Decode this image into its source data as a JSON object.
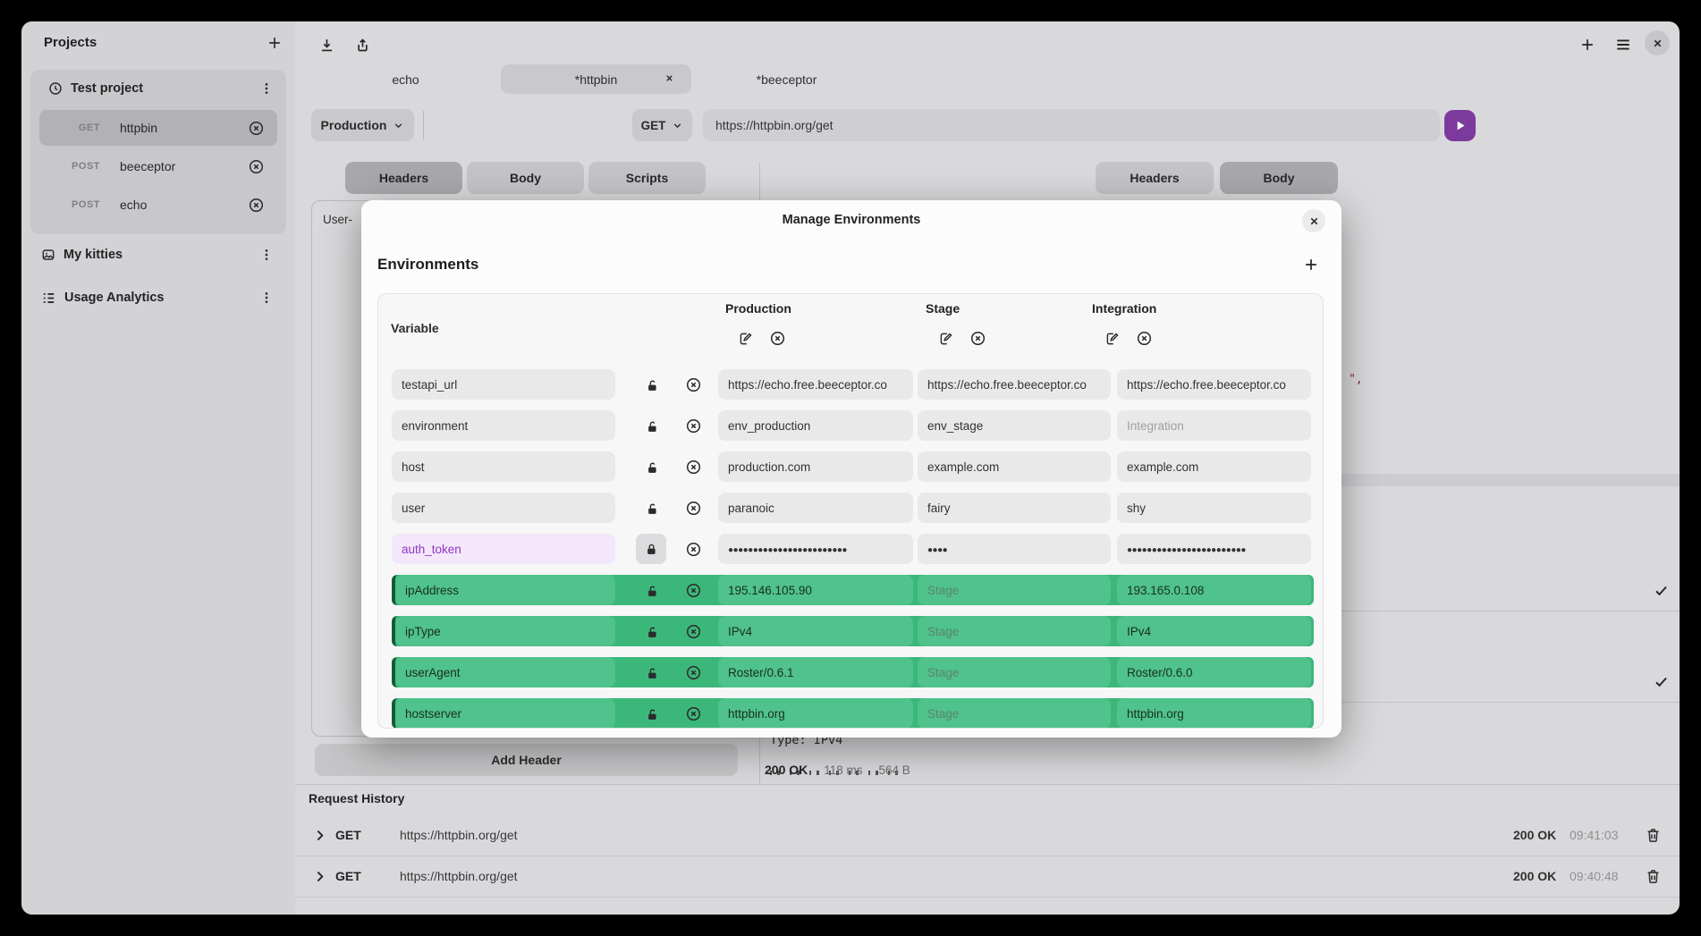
{
  "sidebar": {
    "title": "Projects",
    "groups": [
      {
        "label": "Test project",
        "icon": "clock",
        "items": [
          {
            "method": "GET",
            "name": "httpbin",
            "selected": true
          },
          {
            "method": "POST",
            "name": "beeceptor",
            "selected": false
          },
          {
            "method": "POST",
            "name": "echo",
            "selected": false
          }
        ]
      },
      {
        "label": "My kitties",
        "icon": "image",
        "items": []
      },
      {
        "label": "Usage Analytics",
        "icon": "list",
        "items": []
      }
    ]
  },
  "tabs": [
    {
      "label": "echo",
      "active": false
    },
    {
      "label": "*httpbin",
      "active": true
    },
    {
      "label": "*beeceptor",
      "active": false
    }
  ],
  "request_bar": {
    "environment": "Production",
    "method": "GET",
    "url": "https://httpbin.org/get"
  },
  "request_tabs": {
    "labels": [
      "Headers",
      "Body",
      "Scripts"
    ],
    "active": 0
  },
  "response_tabs": {
    "labels": [
      "Headers",
      "Body"
    ],
    "active": 1
  },
  "request_pane": {
    "partial_header": "User-",
    "add_header_label": "Add Header"
  },
  "response_pane": {
    "json_fragment": "\",",
    "body_line": "Type: IPv4",
    "status": "200 OK",
    "time": "118 ms",
    "size": "564 B"
  },
  "modal": {
    "title": "Manage Environments",
    "heading": "Environments",
    "table": {
      "variable_header": "Variable",
      "environments": [
        "Production",
        "Stage",
        "Integration"
      ],
      "rows": [
        {
          "variable": "testapi_url",
          "style": "default",
          "locked": false,
          "values": [
            {
              "text": "https://echo.free.beeceptor.co"
            },
            {
              "text": "https://echo.free.beeceptor.co"
            },
            {
              "text": "https://echo.free.beeceptor.co"
            }
          ]
        },
        {
          "variable": "environment",
          "style": "default",
          "locked": false,
          "values": [
            {
              "text": "env_production"
            },
            {
              "text": "env_stage"
            },
            {
              "text": "Integration",
              "placeholder": true
            }
          ]
        },
        {
          "variable": "host",
          "style": "default",
          "locked": false,
          "values": [
            {
              "text": "production.com"
            },
            {
              "text": "example.com"
            },
            {
              "text": "example.com"
            }
          ]
        },
        {
          "variable": "user",
          "style": "default",
          "locked": false,
          "values": [
            {
              "text": "paranoic"
            },
            {
              "text": "fairy"
            },
            {
              "text": "shy"
            }
          ]
        },
        {
          "variable": "auth_token",
          "style": "purple",
          "locked": true,
          "values": [
            {
              "text": "●●●●●●●●●●●●●●●●●●●●●●●●",
              "secret": true
            },
            {
              "text": "●●●●",
              "secret": true
            },
            {
              "text": "●●●●●●●●●●●●●●●●●●●●●●●●",
              "secret": true
            }
          ]
        },
        {
          "variable": "ipAddress",
          "style": "green",
          "locked": false,
          "values": [
            {
              "text": "195.146.105.90"
            },
            {
              "text": "Stage",
              "placeholder": true
            },
            {
              "text": "193.165.0.108"
            }
          ]
        },
        {
          "variable": "ipType",
          "style": "green",
          "locked": false,
          "values": [
            {
              "text": "IPv4"
            },
            {
              "text": "Stage",
              "placeholder": true
            },
            {
              "text": "IPv4"
            }
          ]
        },
        {
          "variable": "userAgent",
          "style": "green",
          "locked": false,
          "values": [
            {
              "text": "Roster/0.6.1"
            },
            {
              "text": "Stage",
              "placeholder": true
            },
            {
              "text": "Roster/0.6.0"
            }
          ]
        },
        {
          "variable": "hostserver",
          "style": "green",
          "locked": false,
          "values": [
            {
              "text": "httpbin.org"
            },
            {
              "text": "Stage",
              "placeholder": true
            },
            {
              "text": "httpbin.org"
            }
          ]
        }
      ]
    }
  },
  "history": {
    "title": "Request History",
    "rows": [
      {
        "method": "GET",
        "url": "https://httpbin.org/get",
        "status": "200 OK",
        "time": "09:41:03"
      },
      {
        "method": "GET",
        "url": "https://httpbin.org/get",
        "status": "200 OK",
        "time": "09:40:48"
      }
    ]
  },
  "colors": {
    "accent": "#7c3a9d",
    "green_row": "#3cb77a",
    "green_pill": "#50c28b",
    "purple_variable": "#8e35c4"
  }
}
